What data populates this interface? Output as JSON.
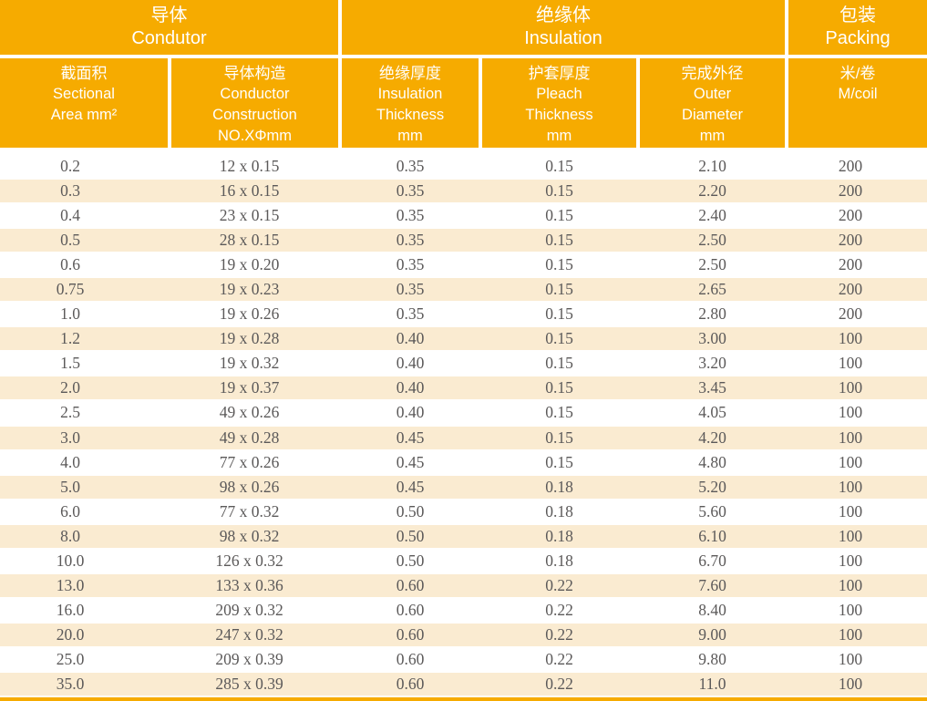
{
  "colors": {
    "header_orange": "#F6AB00",
    "stripe_cream": "#FAEBD1",
    "data_text": "#5B5959",
    "header_text": "#FFFFFF"
  },
  "table": {
    "header_groups": [
      {
        "zh": "导体",
        "en": "Condutor"
      },
      {
        "zh": "绝缘体",
        "en": "Insulation"
      },
      {
        "zh": "包装",
        "en": "Packing"
      }
    ],
    "columns": [
      {
        "zh": "截面积",
        "en": "Sectional\nArea mm²"
      },
      {
        "zh": "导体构造",
        "en": "Conductor\nConstruction\nNO.XΦmm"
      },
      {
        "zh": "绝缘厚度",
        "en": "Insulation\nThickness\nmm"
      },
      {
        "zh": "护套厚度",
        "en": "Pleach\nThickness\nmm"
      },
      {
        "zh": "完成外径",
        "en": "Outer\nDiameter\nmm"
      },
      {
        "zh": "米/卷",
        "en": "M/coil"
      }
    ],
    "rows": [
      [
        "0.2",
        "12 x 0.15",
        "0.35",
        "0.15",
        "2.10",
        "200"
      ],
      [
        "0.3",
        "16 x 0.15",
        "0.35",
        "0.15",
        "2.20",
        "200"
      ],
      [
        "0.4",
        "23 x 0.15",
        "0.35",
        "0.15",
        "2.40",
        "200"
      ],
      [
        "0.5",
        "28 x 0.15",
        "0.35",
        "0.15",
        "2.50",
        "200"
      ],
      [
        "0.6",
        "19 x 0.20",
        "0.35",
        "0.15",
        "2.50",
        "200"
      ],
      [
        "0.75",
        "19 x 0.23",
        "0.35",
        "0.15",
        "2.65",
        "200"
      ],
      [
        "1.0",
        "19 x 0.26",
        "0.35",
        "0.15",
        "2.80",
        "200"
      ],
      [
        "1.2",
        "19 x 0.28",
        "0.40",
        "0.15",
        "3.00",
        "100"
      ],
      [
        "1.5",
        "19 x 0.32",
        "0.40",
        "0.15",
        "3.20",
        "100"
      ],
      [
        "2.0",
        "19 x 0.37",
        "0.40",
        "0.15",
        "3.45",
        "100"
      ],
      [
        "2.5",
        "49 x 0.26",
        "0.40",
        "0.15",
        "4.05",
        "100"
      ],
      [
        "3.0",
        "49 x 0.28",
        "0.45",
        "0.15",
        "4.20",
        "100"
      ],
      [
        "4.0",
        "77 x 0.26",
        "0.45",
        "0.15",
        "4.80",
        "100"
      ],
      [
        "5.0",
        "98 x 0.26",
        "0.45",
        "0.18",
        "5.20",
        "100"
      ],
      [
        "6.0",
        "77 x 0.32",
        "0.50",
        "0.18",
        "5.60",
        "100"
      ],
      [
        "8.0",
        "98 x 0.32",
        "0.50",
        "0.18",
        "6.10",
        "100"
      ],
      [
        "10.0",
        "126 x 0.32",
        "0.50",
        "0.18",
        "6.70",
        "100"
      ],
      [
        "13.0",
        "133 x 0.36",
        "0.60",
        "0.22",
        "7.60",
        "100"
      ],
      [
        "16.0",
        "209 x 0.32",
        "0.60",
        "0.22",
        "8.40",
        "100"
      ],
      [
        "20.0",
        "247 x 0.32",
        "0.60",
        "0.22",
        "9.00",
        "100"
      ],
      [
        "25.0",
        "209 x 0.39",
        "0.60",
        "0.22",
        "9.80",
        "100"
      ],
      [
        "35.0",
        "285 x 0.39",
        "0.60",
        "0.22",
        "11.0",
        "100"
      ]
    ]
  }
}
